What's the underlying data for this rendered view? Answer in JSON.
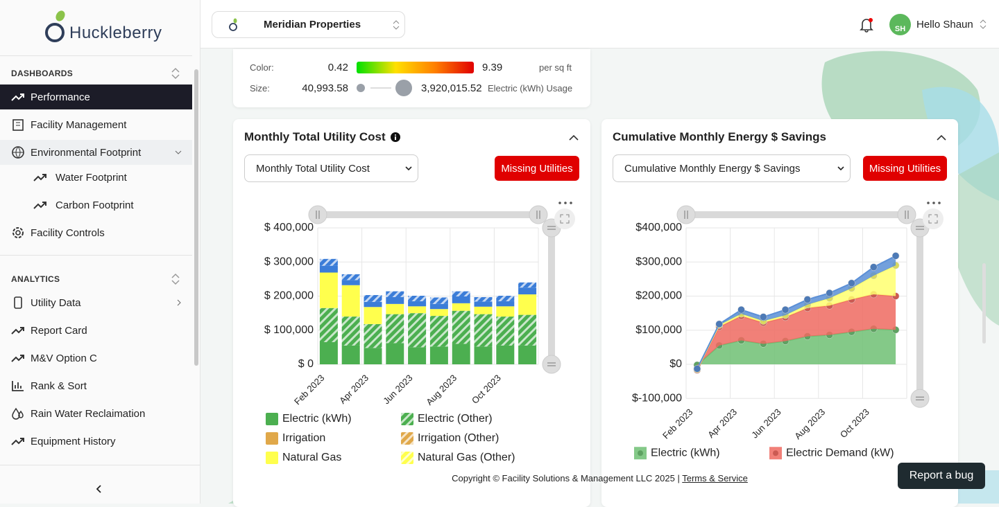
{
  "sidebar": {
    "brand": "Huckleberry",
    "sections": [
      {
        "heading": "DASHBOARDS",
        "items": [
          "Performance",
          "Facility Management",
          "Environmental Footprint",
          "Water Footprint",
          "Carbon Footprint",
          "Facility Controls"
        ]
      },
      {
        "heading": "ANALYTICS",
        "items": [
          "Utility Data",
          "Report Card",
          "M&V Option C",
          "Rank & Sort",
          "Rain Water Reclaimation",
          "Equipment History"
        ]
      }
    ]
  },
  "topbar": {
    "property": "Meridian Properties",
    "greeting": "Hello Shaun",
    "avatar": "SH"
  },
  "map_legend": {
    "color_label": "Color:",
    "color_min": "0.42",
    "color_max": "9.39",
    "color_unit": "per sq ft",
    "size_label": "Size:",
    "size_min": "40,993.58",
    "size_max": "3,920,015.52",
    "size_unit": "Electric (kWh) Usage"
  },
  "cards": [
    {
      "select": "Monthly Total Utility Cost",
      "button": "Missing Utilities"
    },
    {
      "select": "Cumulative Monthly Energy $ Savings",
      "button": "Missing Utilities"
    }
  ],
  "chart_data": [
    {
      "type": "bar",
      "title": "Monthly Total Utility Cost",
      "categories": [
        "Feb 2023",
        null,
        "Apr 2023",
        null,
        "Jun 2023",
        null,
        "Aug 2023",
        null,
        "Oct 2023",
        null
      ],
      "ylim": [
        0,
        400000
      ],
      "yticks": [
        {
          "value": 0,
          "label": "$ 0"
        },
        {
          "value": 100000,
          "label": "$ 100,000"
        },
        {
          "value": 200000,
          "label": "$ 200,000"
        },
        {
          "value": 300000,
          "label": "$ 300,000"
        },
        {
          "value": 400000,
          "label": "$ 400,000"
        }
      ],
      "grid": true,
      "series": [
        {
          "name": "Electric (kWh)",
          "color": "#4caf50",
          "values": [
            65000,
            55000,
            48000,
            62000,
            50000,
            52000,
            60000,
            52000,
            55000,
            55000
          ]
        },
        {
          "name": "Electric (Other)",
          "color": "#4caf50",
          "hatched": true,
          "values": [
            100000,
            85000,
            70000,
            85000,
            100000,
            90000,
            97000,
            95000,
            85000,
            90000
          ]
        },
        {
          "name": "Irrigation",
          "color": "#e0a84a",
          "values": [
            0,
            0,
            0,
            0,
            0,
            0,
            0,
            0,
            0,
            0
          ]
        },
        {
          "name": "Irrigation (Other)",
          "color": "#e0a84a",
          "hatched": true,
          "values": [
            0,
            0,
            0,
            0,
            0,
            0,
            0,
            0,
            0,
            0
          ]
        },
        {
          "name": "Natural Gas",
          "color": "#ffff4d",
          "values": [
            104000,
            92000,
            50000,
            30000,
            20000,
            20000,
            22000,
            22000,
            30000,
            60000
          ]
        },
        {
          "name": "Natural Gas (Other)",
          "color": "#ffff4d",
          "hatched": true,
          "values": [
            0,
            0,
            0,
            0,
            0,
            0,
            0,
            0,
            0,
            0
          ]
        },
        {
          "color": "#3b7dd8",
          "values": [
            20000,
            15000,
            15000,
            20000,
            15000,
            15000,
            20000,
            15000,
            15000,
            20000
          ]
        },
        {
          "color": "#3b7dd8",
          "hatched": true,
          "values": [
            20000,
            17000,
            20000,
            17000,
            16000,
            19000,
            15000,
            13000,
            16000,
            15000
          ]
        }
      ]
    },
    {
      "type": "area",
      "title": "Cumulative Monthly Energy $ Savings",
      "categories": [
        "Feb 2023",
        null,
        "Apr 2023",
        null,
        "Jun 2023",
        null,
        "Aug 2023",
        null,
        "Oct 2023",
        null
      ],
      "ylim": [
        -100000,
        400000
      ],
      "yticks": [
        {
          "value": -100000,
          "label": "$-100,000"
        },
        {
          "value": 0,
          "label": "$0"
        },
        {
          "value": 100000,
          "label": "$100,000"
        },
        {
          "value": 200000,
          "label": "$200,000"
        },
        {
          "value": 300000,
          "label": "$300,000"
        },
        {
          "value": 400000,
          "label": "$400,000"
        }
      ],
      "grid": true,
      "series": [
        {
          "name": "Electric (kWh)",
          "color": "#6fbf73",
          "values": [
            -2000,
            55000,
            70000,
            60000,
            68000,
            82000,
            86000,
            95000,
            104000,
            101000
          ]
        },
        {
          "name": "Electric Demand (kW)",
          "color": "#ef6a60",
          "values": [
            -15000,
            55000,
            72000,
            62000,
            70000,
            83000,
            86000,
            95000,
            101000,
            99000
          ]
        },
        {
          "color": "#ffff70",
          "values": [
            2000,
            5000,
            6000,
            5000,
            6000,
            10000,
            22000,
            33000,
            55000,
            90000
          ]
        },
        {
          "color": "#5b8fd6",
          "values": [
            2000,
            3000,
            12000,
            12000,
            16000,
            15000,
            15000,
            15000,
            25000,
            28000
          ]
        }
      ]
    }
  ],
  "footer": {
    "copyright": "Copyright © Facility Solutions & Management LLC 2025 |",
    "link": "Terms & Service"
  },
  "report_bug": "Report a bug"
}
